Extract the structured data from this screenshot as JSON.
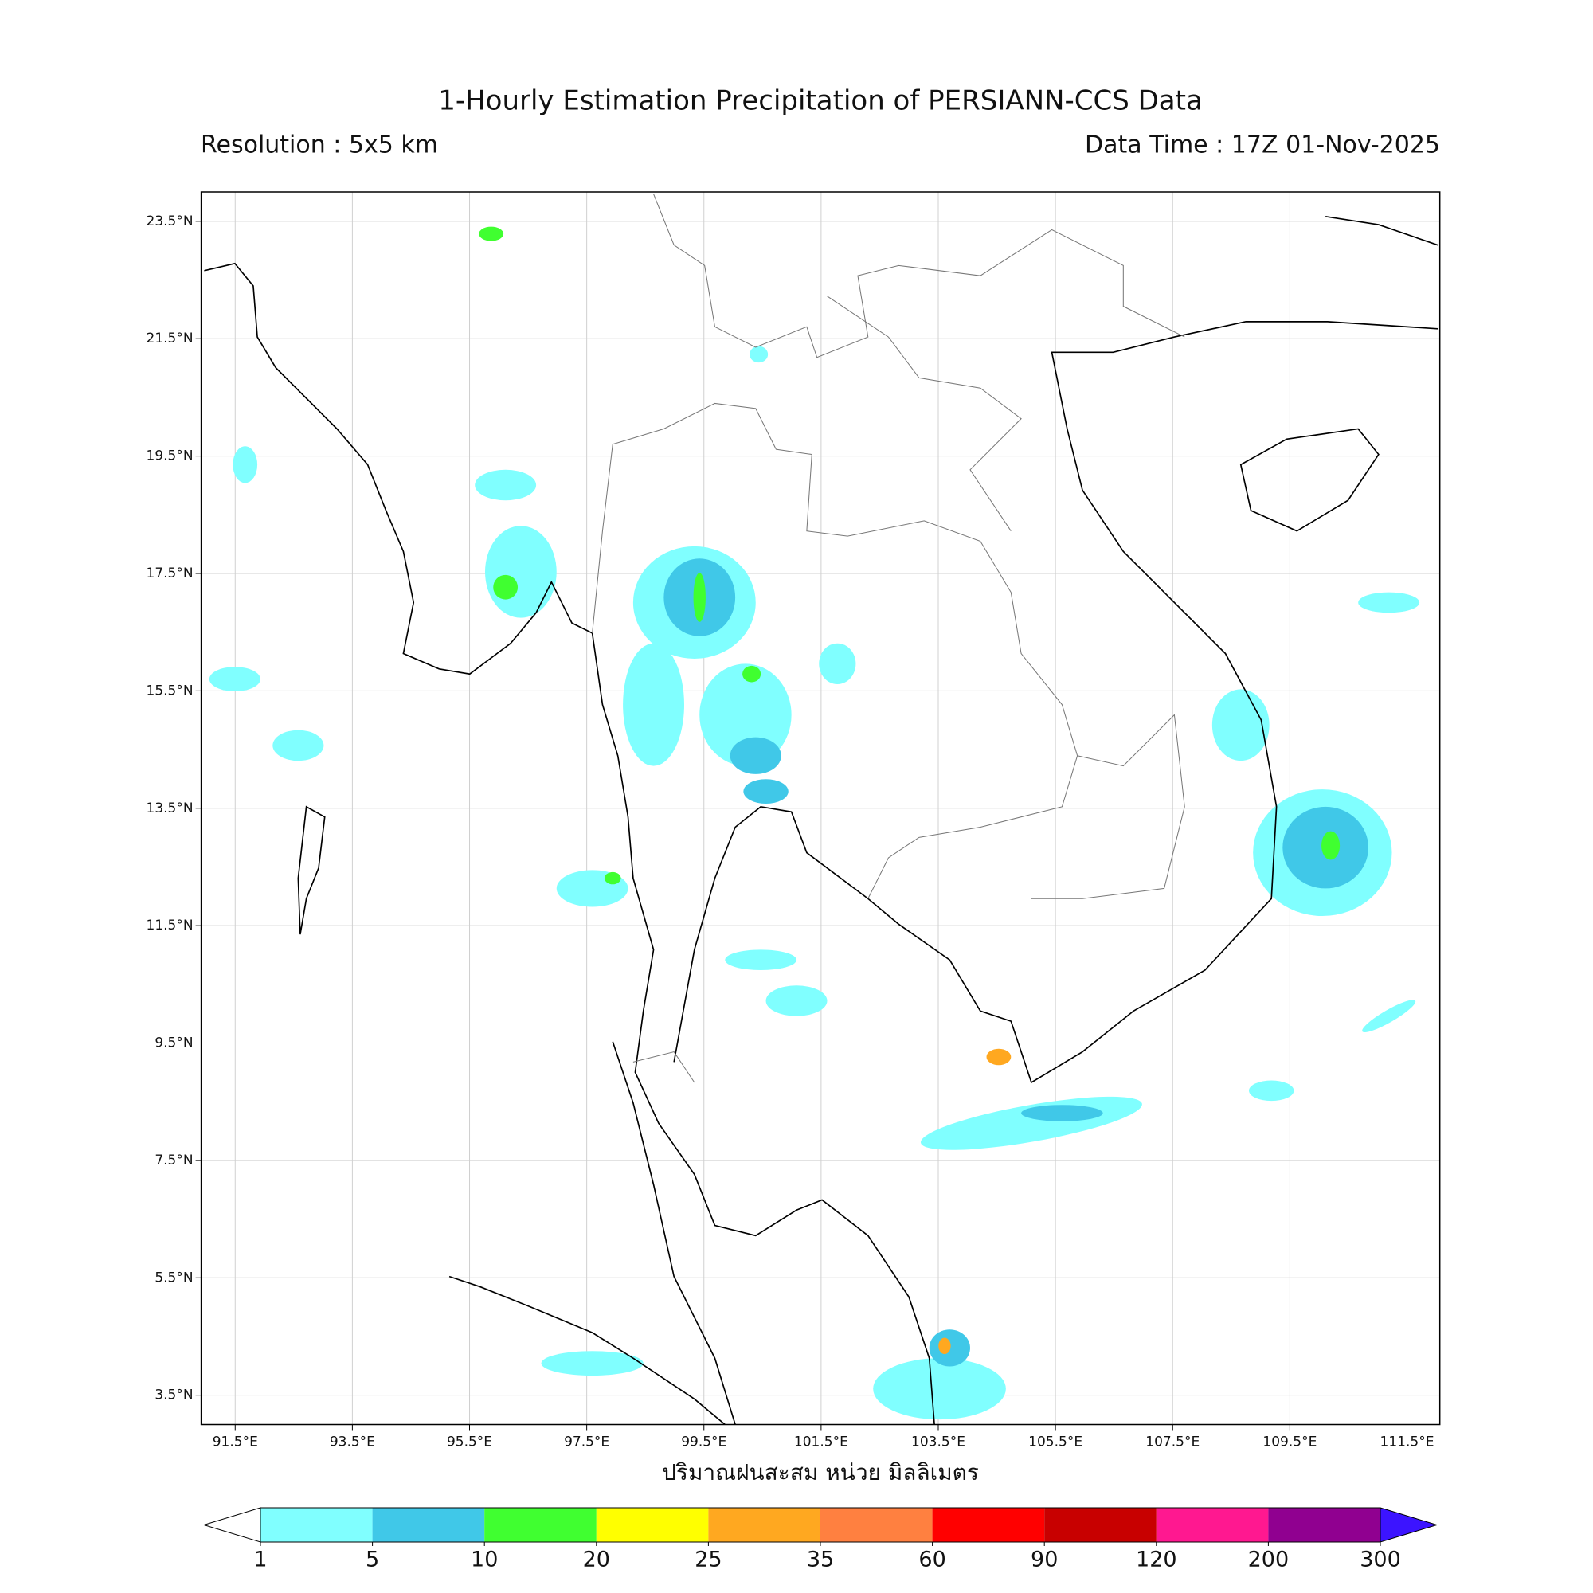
{
  "header": {
    "title": "1-Hourly Estimation Precipitation of PERSIANN-CCS Data",
    "resolution": "Resolution : 5x5 km",
    "data_time": "Data Time : 17Z 01-Nov-2025"
  },
  "map": {
    "xlim": [
      90.92,
      112.06
    ],
    "ylim": [
      3.0,
      24.0
    ],
    "grid": true,
    "xticks": [
      {
        "value": 91.5,
        "label": "91.5°E"
      },
      {
        "value": 93.5,
        "label": "93.5°E"
      },
      {
        "value": 95.5,
        "label": "95.5°E"
      },
      {
        "value": 97.5,
        "label": "97.5°E"
      },
      {
        "value": 99.5,
        "label": "99.5°E"
      },
      {
        "value": 101.5,
        "label": "101.5°E"
      },
      {
        "value": 103.5,
        "label": "103.5°E"
      },
      {
        "value": 105.5,
        "label": "105.5°E"
      },
      {
        "value": 107.5,
        "label": "107.5°E"
      },
      {
        "value": 109.5,
        "label": "109.5°E"
      },
      {
        "value": 111.5,
        "label": "111.5°E"
      }
    ],
    "yticks": [
      {
        "value": 3.5,
        "label": "3.5°N"
      },
      {
        "value": 5.5,
        "label": "5.5°N"
      },
      {
        "value": 7.5,
        "label": "7.5°N"
      },
      {
        "value": 9.5,
        "label": "9.5°N"
      },
      {
        "value": 11.5,
        "label": "11.5°N"
      },
      {
        "value": 13.5,
        "label": "13.5°N"
      },
      {
        "value": 15.5,
        "label": "15.5°N"
      },
      {
        "value": 17.5,
        "label": "17.5°N"
      },
      {
        "value": 19.5,
        "label": "19.5°N"
      },
      {
        "value": 21.5,
        "label": "21.5°N"
      },
      {
        "value": 23.5,
        "label": "23.5°N"
      }
    ],
    "xlabel": "ปริมาณฝนสะสม หน่วย มิลลิเมตร"
  },
  "colorbar": {
    "levels": [
      1,
      5,
      10,
      20,
      25,
      35,
      60,
      90,
      120,
      200,
      300
    ],
    "colors": [
      "#80ffff",
      "#40c8e8",
      "#40ff30",
      "#ffff00",
      "#ffa820",
      "#ff8040",
      "#ff0000",
      "#c80000",
      "#ff1890",
      "#900090"
    ],
    "under_color": "#ffffff",
    "over_color": "#3c14ff"
  }
}
